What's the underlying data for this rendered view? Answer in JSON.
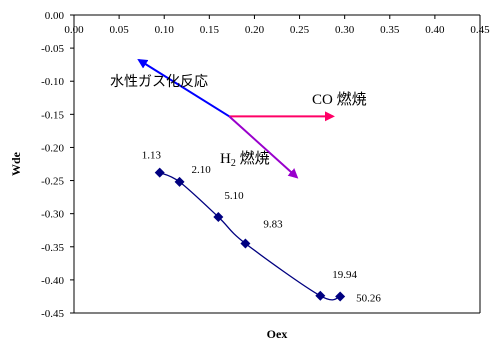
{
  "chart_data": {
    "type": "scatter",
    "xlabel": "Oex",
    "ylabel": "Wde",
    "xlim": [
      0,
      0.45
    ],
    "ylim": [
      -0.45,
      0
    ],
    "x_ticks": [
      0.0,
      0.05,
      0.1,
      0.15,
      0.2,
      0.25,
      0.3,
      0.35,
      0.4,
      0.45
    ],
    "x_tick_labels": [
      "0.00",
      "0.05",
      "0.10",
      "0.15",
      "0.20",
      "0.25",
      "0.30",
      "0.35",
      "0.40",
      "0.45"
    ],
    "y_ticks": [
      0.0,
      -0.05,
      -0.1,
      -0.15,
      -0.2,
      -0.25,
      -0.3,
      -0.35,
      -0.4,
      -0.45
    ],
    "y_tick_labels": [
      "0.00",
      "-0.05",
      "-0.10",
      "-0.15",
      "-0.20",
      "-0.25",
      "-0.30",
      "-0.35",
      "-0.40",
      "-0.45"
    ],
    "grid": false,
    "series": [
      {
        "color": "#000080",
        "smooth": true,
        "marker": "diamond",
        "points": [
          {
            "x": 0.095,
            "y": -0.238,
            "label": "1.13"
          },
          {
            "x": 0.117,
            "y": -0.252,
            "label": "2.10"
          },
          {
            "x": 0.16,
            "y": -0.305,
            "label": "5.10"
          },
          {
            "x": 0.19,
            "y": -0.345,
            "label": "9.83"
          },
          {
            "x": 0.273,
            "y": -0.424,
            "label": "19.94"
          },
          {
            "x": 0.295,
            "y": -0.425,
            "label": "50.26"
          }
        ]
      }
    ],
    "annotations": [
      {
        "text": "水性ガス化反応",
        "color": "#0000ff",
        "from": [
          0.172,
          -0.153
        ],
        "to": [
          0.072,
          -0.068
        ]
      },
      {
        "text": "CO 燃焼",
        "color": "#ff0066",
        "from": [
          0.172,
          -0.153
        ],
        "to": [
          0.287,
          -0.153
        ]
      },
      {
        "text_main": "H",
        "text_sub": "2",
        "text_tail": " 燃焼",
        "color": "#9900cc",
        "from": [
          0.172,
          -0.153
        ],
        "to": [
          0.247,
          -0.245
        ]
      }
    ]
  }
}
